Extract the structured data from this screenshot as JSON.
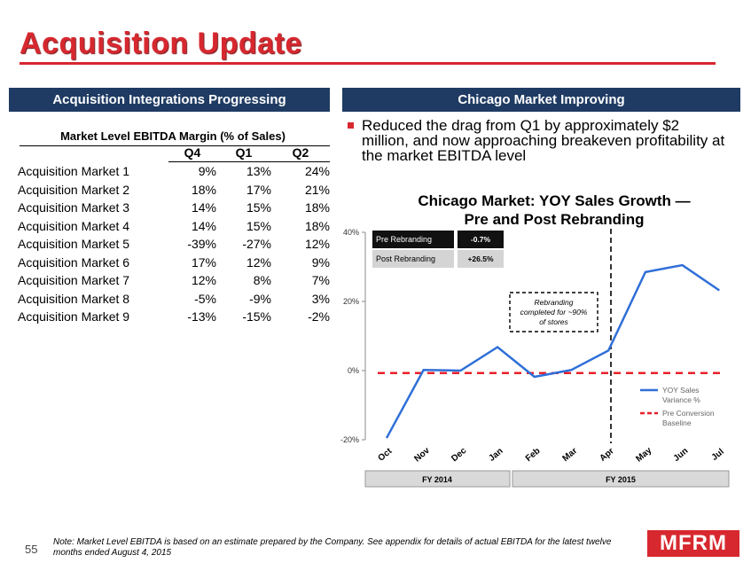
{
  "title": "Acquisition Update",
  "left_panel": {
    "heading": "Acquisition Integrations Progressing",
    "table_caption": "Market Level EBITDA Margin (% of Sales)",
    "columns": [
      "Q4",
      "Q1",
      "Q2"
    ],
    "rows": [
      {
        "name": "Acquisition Market 1",
        "values": [
          "9%",
          "13%",
          "24%"
        ]
      },
      {
        "name": "Acquisition Market 2",
        "values": [
          "18%",
          "17%",
          "21%"
        ]
      },
      {
        "name": "Acquisition Market 3",
        "values": [
          "14%",
          "15%",
          "18%"
        ]
      },
      {
        "name": "Acquisition Market 4",
        "values": [
          "14%",
          "15%",
          "18%"
        ]
      },
      {
        "name": "Acquisition Market 5",
        "values": [
          "-39%",
          "-27%",
          "12%"
        ]
      },
      {
        "name": "Acquisition Market 6",
        "values": [
          "17%",
          "12%",
          "9%"
        ]
      },
      {
        "name": "Acquisition Market 7",
        "values": [
          "12%",
          "8%",
          "7%"
        ]
      },
      {
        "name": "Acquisition Market 8",
        "values": [
          "-5%",
          "-9%",
          "3%"
        ]
      },
      {
        "name": "Acquisition Market 9",
        "values": [
          "-13%",
          "-15%",
          "-2%"
        ]
      }
    ]
  },
  "right_panel": {
    "heading": "Chicago Market Improving",
    "bullet": "Reduced the drag from Q1 by approximately $2 million, and now approaching breakeven profitability at the market EBITDA level"
  },
  "chart_data": {
    "type": "line",
    "title": "Chicago Market: YOY Sales Growth —\nPre and Post Rebranding",
    "categories": [
      "Oct",
      "Nov",
      "Dec",
      "Jan",
      "Feb",
      "Mar",
      "Apr",
      "May",
      "Jun",
      "Jul"
    ],
    "series": [
      {
        "name": "YOY Sales Variance %",
        "values": [
          -19.5,
          0.2,
          0,
          6.8,
          -1.8,
          0.2,
          5.8,
          28.5,
          30.5,
          23.2
        ],
        "color": "#2f6fd8"
      },
      {
        "name": "Pre Conversion Baseline",
        "values": [
          -0.7,
          -0.7,
          -0.7,
          -0.7,
          -0.7,
          -0.7,
          -0.7,
          -0.7,
          -0.7,
          -0.7
        ],
        "color": "#e8202a",
        "dashed": true
      }
    ],
    "ylim": [
      -20,
      40
    ],
    "yticks": [
      "-20%",
      "0%",
      "20%",
      "40%"
    ],
    "summary_table": [
      {
        "label": "Pre Rebranding",
        "value": "-0.7%"
      },
      {
        "label": "Post Rebranding",
        "value": "+26.5%"
      }
    ],
    "annotation": "Rebranding completed for ~90% of stores",
    "fiscal_years": [
      "FY 2014",
      "FY 2015"
    ],
    "legend_position": "bottom-right"
  },
  "footer": {
    "page_number": "55",
    "note": "Note: Market Level EBITDA is based on an estimate prepared by the Company. See appendix for details of actual EBITDA for the latest twelve months ended August 4, 2015",
    "logo": "MFRM"
  }
}
